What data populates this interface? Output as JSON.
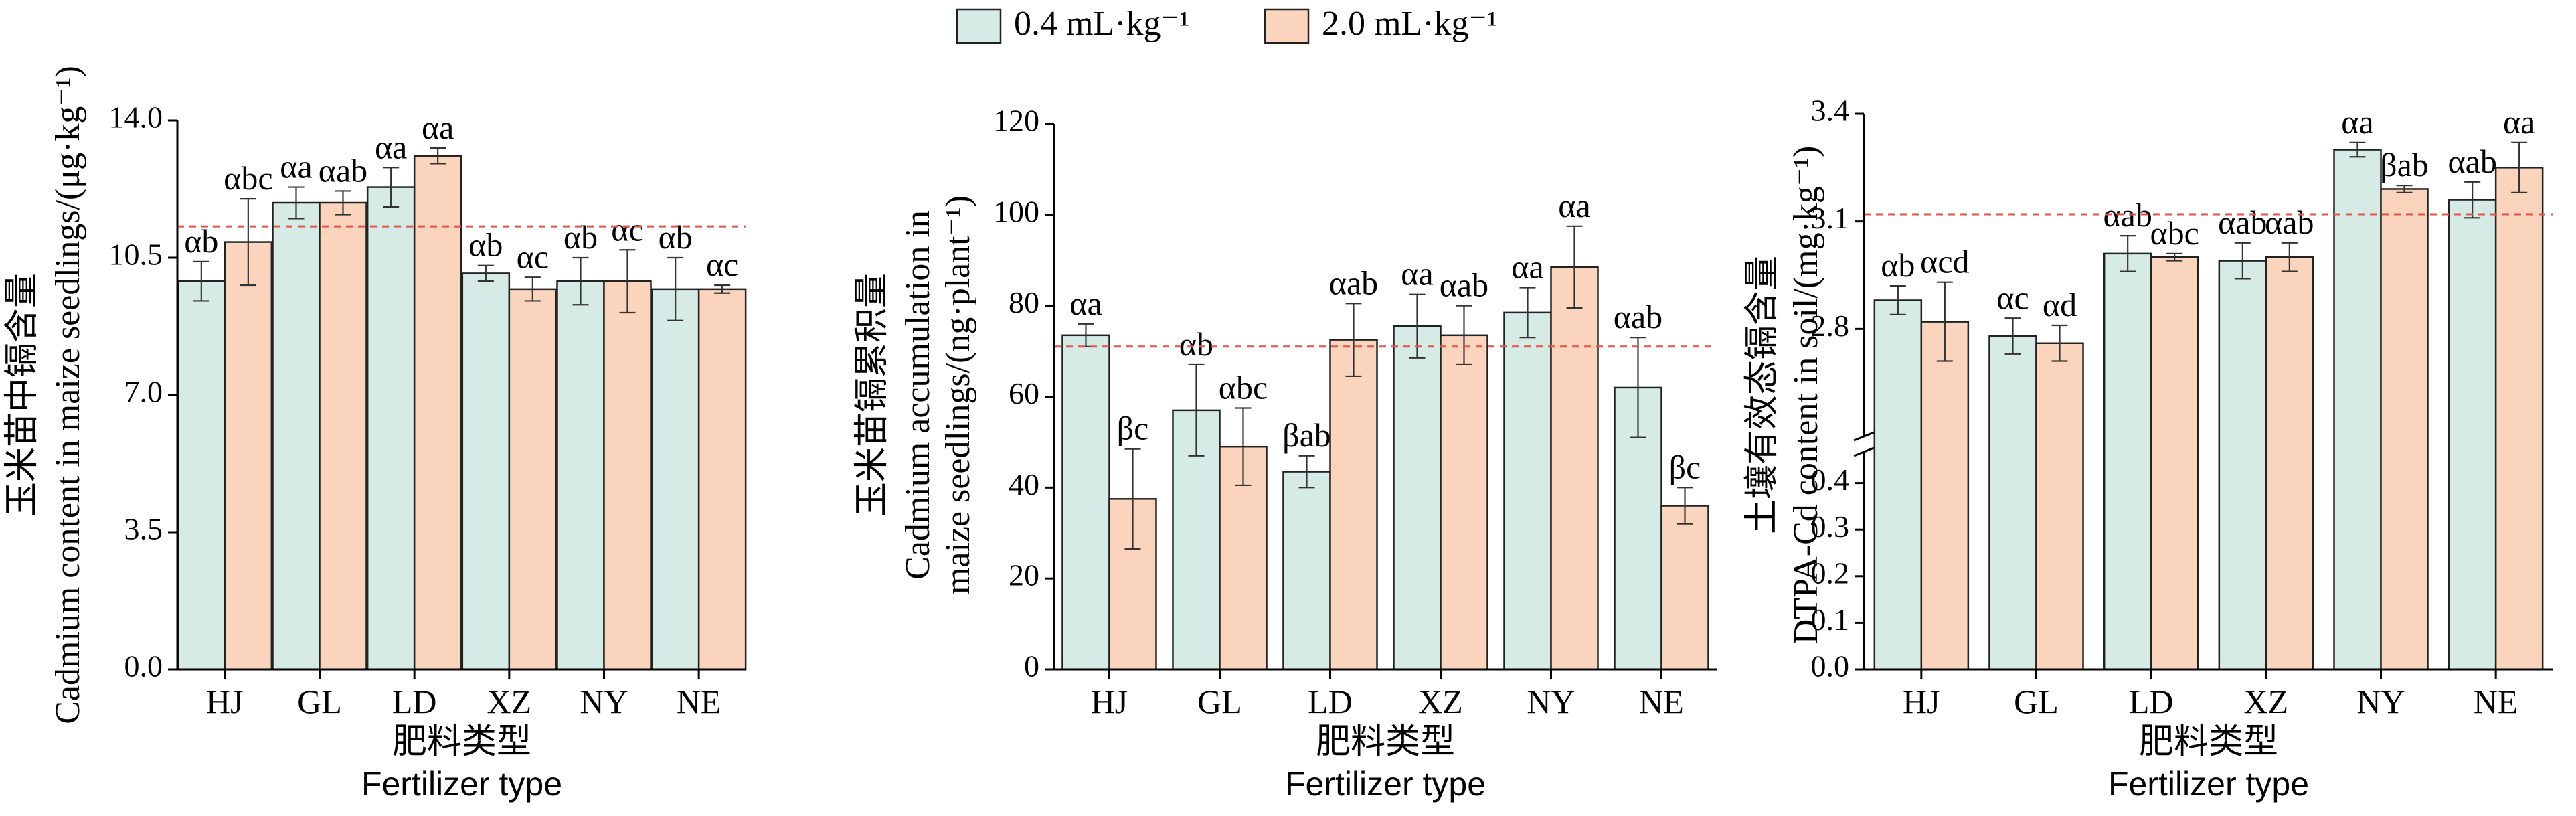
{
  "legend": {
    "items": [
      {
        "label": "0.4 mL·kg⁻¹",
        "color": "#d6ebe6"
      },
      {
        "label": "2.0 mL·kg⁻¹",
        "color": "#fbd4bd"
      }
    ]
  },
  "chart_data": [
    {
      "type": "bar",
      "title": "",
      "ylabel_cn": "玉米苗中镉含量",
      "ylabel_en": "Cadmium content in maize seedlings/(μg·kg⁻¹)",
      "xlabel_cn": "肥料类型",
      "xlabel_en": "Fertilizer type",
      "categories": [
        "HJ",
        "GL",
        "LD",
        "XZ",
        "NY",
        "NE"
      ],
      "ylim": [
        0,
        14
      ],
      "yticks": [
        "0.0",
        "3.5",
        "7.0",
        "10.5",
        "14.0"
      ],
      "ref_line": 11.3,
      "series": [
        {
          "name": "0.4 mL·kg⁻¹",
          "values": [
            9.9,
            11.9,
            12.3,
            10.1,
            9.9,
            9.7
          ],
          "errors": [
            0.5,
            0.4,
            0.5,
            0.2,
            0.6,
            0.8
          ],
          "labels": [
            "αb",
            "αa",
            "αa",
            "αb",
            "αb",
            "αb"
          ]
        },
        {
          "name": "2.0 mL·kg⁻¹",
          "values": [
            10.9,
            11.9,
            13.1,
            9.7,
            9.9,
            9.7
          ],
          "errors": [
            1.1,
            0.3,
            0.2,
            0.3,
            0.8,
            0.1
          ],
          "labels": [
            "αbc",
            "αab",
            "αa",
            "αc",
            "αc",
            "αc"
          ]
        }
      ]
    },
    {
      "type": "bar",
      "title": "",
      "ylabel_cn": "玉米苗镉累积量",
      "ylabel_en_line1": "Cadmium accumulation in",
      "ylabel_en_line2": "maize seedlings/(ng·plant⁻¹)",
      "xlabel_cn": "肥料类型",
      "xlabel_en": "Fertilizer type",
      "categories": [
        "HJ",
        "GL",
        "LD",
        "XZ",
        "NY",
        "NE"
      ],
      "ylim": [
        0,
        120
      ],
      "yticks": [
        "0",
        "20",
        "40",
        "60",
        "80",
        "100",
        "120"
      ],
      "ref_line": 71,
      "series": [
        {
          "name": "0.4 mL·kg⁻¹",
          "values": [
            73.5,
            57,
            43.5,
            75.5,
            78.5,
            62
          ],
          "errors": [
            2.5,
            10,
            3.5,
            7,
            5.5,
            11
          ],
          "labels": [
            "αa",
            "αb",
            "βab",
            "αa",
            "αa",
            "αab"
          ]
        },
        {
          "name": "2.0 mL·kg⁻¹",
          "values": [
            37.5,
            49,
            72.5,
            73.5,
            88.5,
            36
          ],
          "errors": [
            11,
            8.5,
            8,
            6.5,
            9,
            4
          ],
          "labels": [
            "βc",
            "αbc",
            "αab",
            "αab",
            "αa",
            "βc"
          ]
        }
      ]
    },
    {
      "type": "bar",
      "title": "",
      "ylabel_cn": "土壤有效态镉含量",
      "ylabel_en": "DTPA-Cd content in soil/(mg·kg⁻¹)",
      "xlabel_cn": "肥料类型",
      "xlabel_en": "Fertilizer type",
      "categories": [
        "HJ",
        "GL",
        "LD",
        "XZ",
        "NY",
        "NE"
      ],
      "ylim_lower": [
        0,
        0.5
      ],
      "ylim_upper": [
        2.5,
        3.4
      ],
      "yticks_lower": [
        "0.0",
        "0.1",
        "0.2",
        "0.3",
        "0.4"
      ],
      "yticks_upper": [
        "2.8",
        "3.1",
        "3.4"
      ],
      "ref_line": 3.12,
      "series": [
        {
          "name": "0.4 mL·kg⁻¹",
          "values": [
            2.88,
            2.78,
            3.01,
            2.99,
            3.3,
            3.16
          ],
          "errors": [
            0.04,
            0.05,
            0.05,
            0.05,
            0.02,
            0.05
          ],
          "labels": [
            "αb",
            "αc",
            "αab",
            "αab",
            "αa",
            "αab"
          ]
        },
        {
          "name": "2.0 mL·kg⁻¹",
          "values": [
            2.82,
            2.76,
            3.0,
            3.0,
            3.19,
            3.25
          ],
          "errors": [
            0.11,
            0.05,
            0.01,
            0.04,
            0.01,
            0.07
          ],
          "labels": [
            "αcd",
            "αd",
            "αbc",
            "αab",
            "βab",
            "αa"
          ]
        }
      ]
    }
  ]
}
